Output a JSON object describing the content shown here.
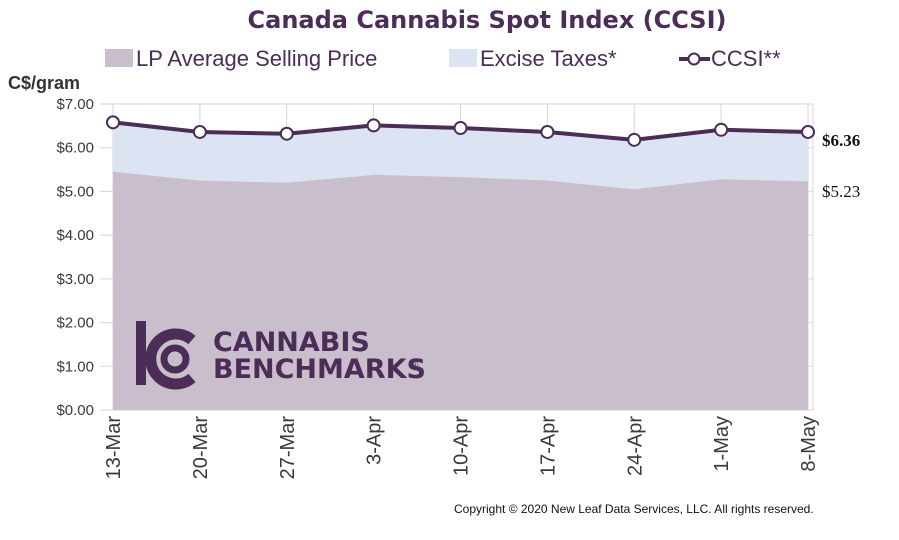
{
  "chart_data": {
    "type": "area",
    "title": "Canada Cannabis Spot Index (CCSI)",
    "ylabel": "C$/gram",
    "xlabel": "",
    "ylim": [
      0,
      7
    ],
    "y_ticks": [
      "$0.00",
      "$1.00",
      "$2.00",
      "$3.00",
      "$4.00",
      "$5.00",
      "$6.00",
      "$7.00"
    ],
    "categories": [
      "13-Mar",
      "20-Mar",
      "27-Mar",
      "3-Apr",
      "10-Apr",
      "17-Apr",
      "24-Apr",
      "1-May",
      "8-May"
    ],
    "grid": true,
    "legend_position": "top",
    "series": [
      {
        "name": "LP Average Selling Price",
        "kind": "area",
        "color": "#c9bfcc",
        "values": [
          5.45,
          5.25,
          5.2,
          5.38,
          5.33,
          5.25,
          5.05,
          5.28,
          5.23
        ]
      },
      {
        "name": "Excise Taxes*",
        "kind": "area",
        "color": "#dce4f4",
        "values": [
          1.13,
          1.11,
          1.12,
          1.13,
          1.12,
          1.11,
          1.13,
          1.13,
          1.13
        ]
      },
      {
        "name": "CCSI**",
        "kind": "line",
        "color": "#4b2d57",
        "values": [
          6.58,
          6.36,
          6.32,
          6.51,
          6.45,
          6.36,
          6.18,
          6.41,
          6.36
        ]
      }
    ],
    "end_labels": {
      "ccsi": "$6.36",
      "lp": "$5.23"
    }
  },
  "logo": {
    "line1": "CANNABIS",
    "line2": "BENCHMARKS",
    "mark": "®"
  },
  "copyright": "Copyright © 2020 New Leaf Data Services, LLC. All rights reserved.",
  "colors": {
    "title": "#4b2d57",
    "text": "#3a3a3a",
    "grid": "#d9d2de",
    "ccsi": "#4b2d57"
  }
}
